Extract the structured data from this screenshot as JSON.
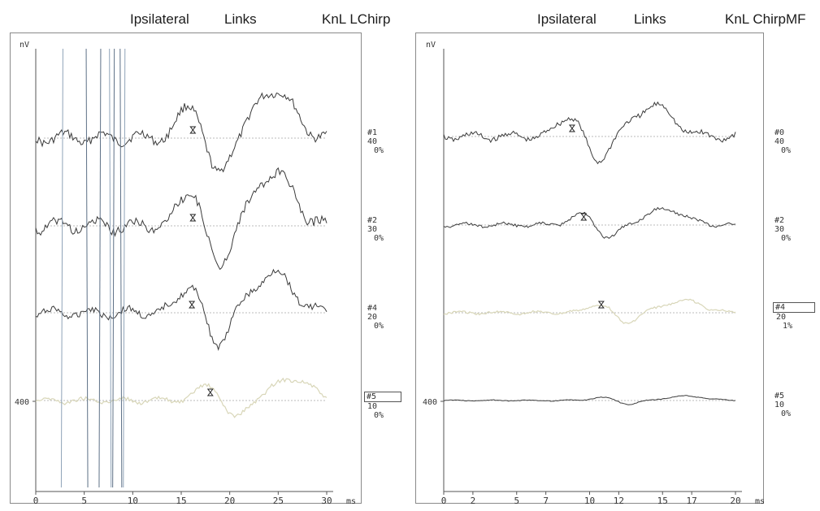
{
  "panels": [
    {
      "header": {
        "side": "Ipsilateral",
        "ear": "Links",
        "stimulus": "KnL LChirp"
      },
      "y_unit": "nV",
      "y_tick": "400",
      "x_unit": "ms",
      "x_ticks": [
        "0",
        "5",
        "10",
        "15",
        "20",
        "25",
        "30"
      ],
      "traces": [
        {
          "id": "#1",
          "level": "40",
          "artifact": "0%",
          "latency_ms": 16.2,
          "boxed": false,
          "faint": false
        },
        {
          "id": "#2",
          "level": "30",
          "artifact": "0%",
          "latency_ms": 16.2,
          "boxed": false,
          "faint": false
        },
        {
          "id": "#4",
          "level": "20",
          "artifact": "0%",
          "latency_ms": 16.1,
          "boxed": false,
          "faint": false
        },
        {
          "id": "#5",
          "level": "10",
          "artifact": "0%",
          "latency_ms": 18.0,
          "boxed": true,
          "faint": true
        }
      ]
    },
    {
      "header": {
        "side": "Ipsilateral",
        "ear": "Links",
        "stimulus": "KnL ChirpMF"
      },
      "y_unit": "nV",
      "y_tick": "400",
      "x_unit": "ms",
      "x_ticks": [
        "0",
        "2",
        "5",
        "7",
        "10",
        "12",
        "15",
        "17",
        "20"
      ],
      "traces": [
        {
          "id": "#0",
          "level": "40",
          "artifact": "0%",
          "latency_ms": 8.8,
          "boxed": false,
          "faint": false
        },
        {
          "id": "#2",
          "level": "30",
          "artifact": "0%",
          "latency_ms": 9.6,
          "boxed": false,
          "faint": false
        },
        {
          "id": "#4",
          "level": "20",
          "artifact": "1%",
          "latency_ms": 10.8,
          "boxed": true,
          "faint": true
        },
        {
          "id": "#5",
          "level": "10",
          "artifact": "0%",
          "latency_ms": null,
          "boxed": false,
          "faint": false
        }
      ]
    }
  ],
  "chart_data": [
    {
      "type": "line",
      "title": "Ipsilateral Links KnL LChirp",
      "xlabel": "ms",
      "ylabel": "nV",
      "xlim": [
        0,
        30
      ],
      "scale_bar_nV": 400,
      "series": [
        {
          "name": "#1",
          "wave_V_latency_ms": 16.2
        },
        {
          "name": "#2",
          "wave_V_latency_ms": 16.2
        },
        {
          "name": "#4",
          "wave_V_latency_ms": 16.1
        },
        {
          "name": "#5",
          "wave_V_latency_ms": 18.0
        }
      ]
    },
    {
      "type": "line",
      "title": "Ipsilateral Links KnL ChirpMF",
      "xlabel": "ms",
      "ylabel": "nV",
      "xlim": [
        0,
        20
      ],
      "scale_bar_nV": 400,
      "series": [
        {
          "name": "#0",
          "wave_V_latency_ms": 8.8
        },
        {
          "name": "#2",
          "wave_V_latency_ms": 9.6
        },
        {
          "name": "#4",
          "wave_V_latency_ms": 10.8
        },
        {
          "name": "#5"
        }
      ]
    }
  ]
}
